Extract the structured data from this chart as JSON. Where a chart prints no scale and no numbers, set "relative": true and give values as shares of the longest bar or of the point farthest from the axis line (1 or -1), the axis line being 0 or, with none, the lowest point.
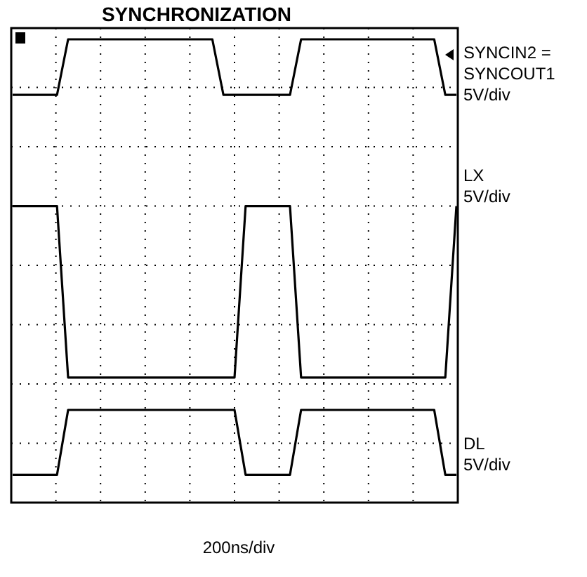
{
  "chart_data": {
    "type": "line",
    "title": "SYNCHRONIZATION",
    "xlabel": "200ns/div",
    "relative": true,
    "grid": true,
    "marker": "none",
    "line_style": "solid",
    "categories": [
      null,
      null,
      null,
      null,
      null,
      null,
      null,
      null,
      null,
      null,
      null,
      null,
      null,
      null,
      null,
      null,
      null,
      null,
      null,
      null,
      null,
      null,
      null,
      null,
      null,
      null,
      null,
      null,
      null,
      null,
      null,
      null,
      null,
      null,
      null,
      null,
      null,
      null,
      null,
      null,
      null
    ],
    "series": [
      {
        "name": "SYNCIN2 =\nSYNCOUT1\n5V/div",
        "color": "#000000",
        "values": [
          0.88,
          0.88,
          0.88,
          0.88,
          0.88,
          1,
          1,
          1,
          1,
          1,
          1,
          1,
          1,
          1,
          1,
          1,
          1,
          1,
          1,
          0.88,
          0.88,
          0.88,
          0.88,
          0.88,
          0.88,
          0.88,
          1,
          1,
          1,
          1,
          1,
          1,
          1,
          1,
          1,
          1,
          1,
          1,
          1,
          0.88,
          0.88
        ]
      },
      {
        "name": "LX\n5V/div",
        "color": "#000000",
        "values": [
          0.64,
          0.64,
          0.64,
          0.64,
          0.64,
          0.27,
          0.27,
          0.27,
          0.27,
          0.27,
          0.27,
          0.27,
          0.27,
          0.27,
          0.27,
          0.27,
          0.27,
          0.27,
          0.27,
          0.27,
          0.27,
          0.64,
          0.64,
          0.64,
          0.64,
          0.64,
          0.27,
          0.27,
          0.27,
          0.27,
          0.27,
          0.27,
          0.27,
          0.27,
          0.27,
          0.27,
          0.27,
          0.27,
          0.27,
          0.27,
          0.64
        ]
      },
      {
        "name": "DL\n5V/div",
        "color": "#000000",
        "values": [
          0.06,
          0.06,
          0.06,
          0.06,
          0.06,
          0.2,
          0.2,
          0.2,
          0.2,
          0.2,
          0.2,
          0.2,
          0.2,
          0.2,
          0.2,
          0.2,
          0.2,
          0.2,
          0.2,
          0.2,
          0.2,
          0.06,
          0.06,
          0.06,
          0.06,
          0.06,
          0.2,
          0.2,
          0.2,
          0.2,
          0.2,
          0.2,
          0.2,
          0.2,
          0.2,
          0.2,
          0.2,
          0.2,
          0.2,
          0.06,
          0.06
        ]
      }
    ]
  }
}
